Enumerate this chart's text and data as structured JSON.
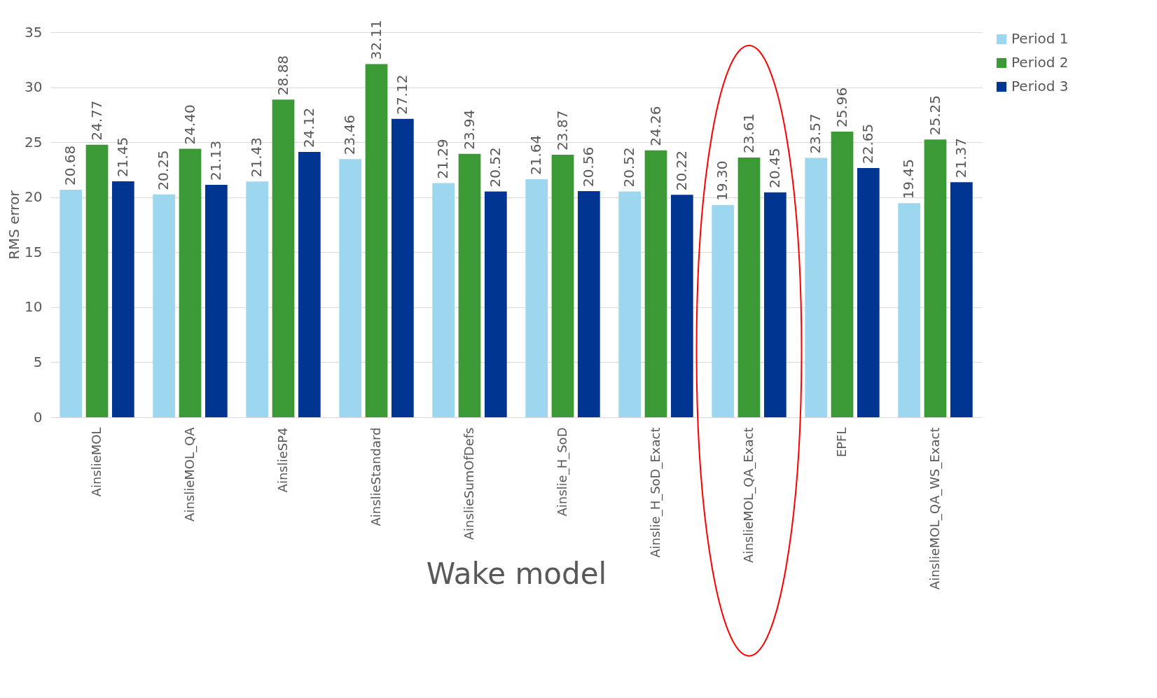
{
  "chart_data": {
    "type": "bar",
    "xlabel": "Wake model",
    "ylabel": "RMS error",
    "categories": [
      "AinslieMOL",
      "AinslieMOL_QA",
      "AinslieSP4",
      "AinslieStandard",
      "AinslieSumOfDefs",
      "Ainslie_H_SoD",
      "Ainslie_H_SoD_Exact",
      "AinslieMOL_QA_Exact",
      "EPFL",
      "AinslieMOL_QA_WS_Exact"
    ],
    "series": [
      {
        "name": "Period 1",
        "color": "#9dd7ef",
        "values": [
          20.68,
          20.25,
          21.43,
          23.46,
          21.29,
          21.64,
          20.52,
          19.3,
          23.57,
          19.45
        ],
        "value_labels": [
          "20.68",
          "20.25",
          "21.43",
          "23.46",
          "21.29",
          "21.64",
          "20.52",
          "19.30",
          "23.57",
          "19.45"
        ]
      },
      {
        "name": "Period 2",
        "color": "#3c9a36",
        "values": [
          24.77,
          24.4,
          28.88,
          32.11,
          23.94,
          23.87,
          24.26,
          23.61,
          25.96,
          25.25
        ],
        "value_labels": [
          "24.77",
          "24.40",
          "28.88",
          "32.11",
          "23.94",
          "23.87",
          "24.26",
          "23.61",
          "25.96",
          "25.25"
        ]
      },
      {
        "name": "Period 3",
        "color": "#003591",
        "values": [
          21.45,
          21.13,
          24.12,
          27.12,
          20.52,
          20.56,
          20.22,
          20.45,
          22.65,
          21.37
        ],
        "value_labels": [
          "21.45",
          "21.13",
          "24.12",
          "27.12",
          "20.52",
          "20.56",
          "20.22",
          "20.45",
          "22.65",
          "21.37"
        ]
      }
    ],
    "ylim": [
      0,
      35
    ],
    "yticks": [
      0,
      5,
      10,
      15,
      20,
      25,
      30,
      35
    ],
    "grid": "y",
    "legend": "right"
  }
}
